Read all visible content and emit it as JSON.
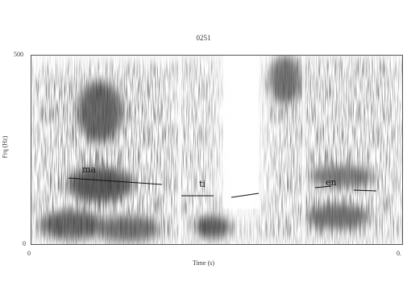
{
  "header": {
    "top_title": "",
    "plot_title": "0251"
  },
  "axes": {
    "y_max_label": "500",
    "y_min_label": "0",
    "y_axis_label": "Frq (Hz)",
    "x_min_label": "0",
    "x_max_label": "0.",
    "x_axis_label": "Time (s)"
  },
  "annotations": {
    "seg1": "ma",
    "seg2": "ti",
    "seg3": "en"
  },
  "colors": {
    "ink": "#1a1a1a",
    "frame": "#555555",
    "background": "#ffffff"
  }
}
